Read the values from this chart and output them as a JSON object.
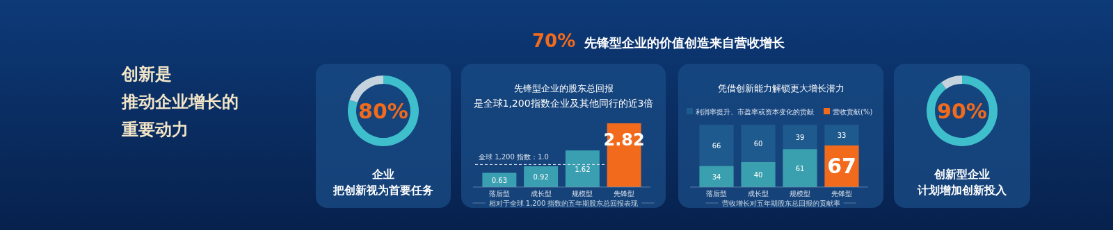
{
  "chart_data": [
    {
      "type": "donut",
      "title": "企业",
      "subtitle": "把创新视为首要任务",
      "annotations": [
        "创新是",
        "推动企业增长的",
        "重要动力",
        "70%",
        "先锋型企业的价值创造来自营收增长"
      ],
      "categories": [
        null,
        null
      ],
      "values": [
        80,
        20
      ],
      "colors": [
        "#3fbfcc",
        "#c5d3df"
      ],
      "value_labels": [
        "80%",
        null
      ]
    },
    {
      "type": "bar",
      "title": "先锋型企业的股东总回报",
      "subtitle": "是全球1,200指数企业及其他同行的近3倍",
      "xlabel": "相对于全球 1,200 指数的五年期股东总回报表现",
      "categories": [
        "落后型",
        "成长型",
        "规模型",
        "先锋型"
      ],
      "values": [
        0.63,
        0.92,
        1.62,
        2.82
      ],
      "colors": [
        "#3a9fb0",
        "#3a9fb0",
        "#3a9fb0",
        "#f26a1b"
      ],
      "data_labels": true,
      "ref_lines": [
        {
          "axis": "y",
          "value": 1.0,
          "label": "全球 1,200 指数：1.0",
          "line_style": "dashed",
          "color": "#dfe8f0"
        }
      ]
    },
    {
      "type": "bar",
      "stacked": true,
      "title": "凭借创新能力解锁更大增长潜力",
      "xlabel": "营收增长对五年期股东总回报的贡献率",
      "categories": [
        "落后型",
        "成长型",
        "规模型",
        "先锋型"
      ],
      "legend": "top",
      "data_labels": true,
      "series": [
        {
          "name": "营收贡献(%)",
          "color": "#f26a1b",
          "colors": [
            "#3a9fae",
            "#3a9fae",
            "#3a9fae",
            "#f26a1b"
          ],
          "values": [
            34,
            40,
            61,
            67
          ]
        },
        {
          "name": "利润率提升、市盈率或资本变化的贡献",
          "color": "#1e5a8e",
          "values": [
            66,
            60,
            39,
            33
          ]
        }
      ]
    },
    {
      "type": "donut",
      "title": "创新型企业",
      "subtitle": "计划增加创新投入",
      "categories": [
        null,
        null
      ],
      "values": [
        90,
        10
      ],
      "colors": [
        "#3fbfcc",
        "#c5d3df"
      ],
      "value_labels": [
        "90%",
        null
      ]
    }
  ]
}
